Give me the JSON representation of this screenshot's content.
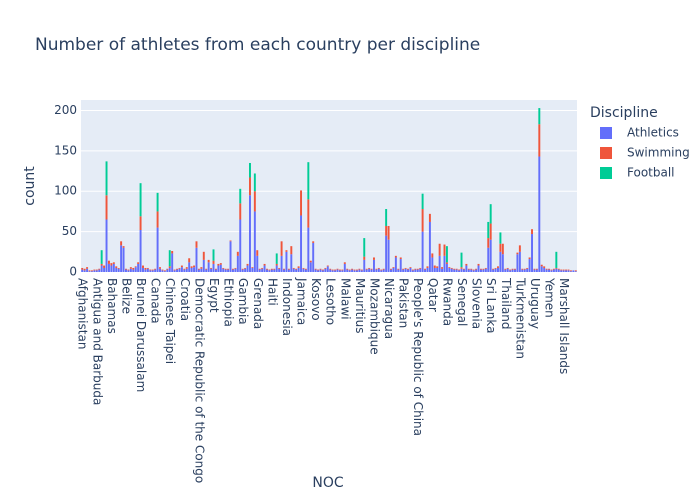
{
  "chart_data": {
    "type": "stacked-bar",
    "title": "Number of athletes from each country per discipline",
    "x_label": "NOC",
    "y_label": "count",
    "legend_title": "Discipline",
    "categories": [
      "Afghanistan",
      null,
      null,
      null,
      null,
      null,
      "Antigua and Barbuda",
      null,
      null,
      null,
      null,
      null,
      "Bahamas",
      null,
      null,
      null,
      null,
      null,
      "Belize",
      null,
      null,
      null,
      null,
      null,
      "Brunei Darussalam",
      null,
      null,
      null,
      null,
      null,
      "Canada",
      null,
      null,
      null,
      null,
      null,
      "Chinese Taipei",
      null,
      null,
      null,
      null,
      null,
      "Croatia",
      null,
      null,
      null,
      null,
      null,
      "Democratic Republic of the Congo",
      null,
      null,
      null,
      null,
      null,
      "Egypt",
      null,
      null,
      null,
      null,
      null,
      "Ethiopia",
      null,
      null,
      null,
      null,
      null,
      "Gambia",
      null,
      null,
      null,
      null,
      null,
      "Grenada",
      null,
      null,
      null,
      null,
      null,
      "Haiti",
      null,
      null,
      null,
      null,
      null,
      "Indonesia",
      null,
      null,
      null,
      null,
      null,
      "Jamaica",
      null,
      null,
      null,
      null,
      null,
      "Kosovo",
      null,
      null,
      null,
      null,
      null,
      "Lesotho",
      null,
      null,
      null,
      null,
      null,
      "Malawi",
      null,
      null,
      null,
      null,
      null,
      "Mauritius",
      null,
      null,
      null,
      null,
      null,
      "Mozambique",
      null,
      null,
      null,
      null,
      null,
      "Nicaragua",
      null,
      null,
      null,
      null,
      null,
      "Pakistan",
      null,
      null,
      null,
      null,
      null,
      "People's Republic of China",
      null,
      null,
      null,
      null,
      null,
      "Qatar",
      null,
      null,
      null,
      null,
      null,
      "Rwanda",
      null,
      null,
      null,
      null,
      null,
      "Senegal",
      null,
      null,
      null,
      null,
      null,
      "Slovenia",
      null,
      null,
      null,
      null,
      null,
      "Sri Lanka",
      null,
      null,
      null,
      null,
      null,
      "Thailand",
      null,
      null,
      null,
      null,
      null,
      "Turkmenistan",
      null,
      null,
      null,
      null,
      null,
      "Uruguay",
      null,
      null,
      null,
      null,
      null,
      "Yemen",
      null,
      null,
      null,
      null,
      null,
      "Marshall Islands",
      null,
      null,
      null,
      null,
      null
    ],
    "series": [
      {
        "name": "Athletics",
        "color": "#636efa",
        "values": [
          3,
          2,
          4,
          1,
          1,
          2,
          2,
          3,
          8,
          5,
          65,
          10,
          8,
          10,
          5,
          4,
          33,
          30,
          3,
          2,
          4,
          3,
          6,
          10,
          52,
          5,
          3,
          4,
          2,
          2,
          3,
          55,
          4,
          2,
          1,
          3,
          5,
          23,
          2,
          3,
          4,
          6,
          3,
          4,
          12,
          5,
          6,
          30,
          3,
          4,
          15,
          3,
          12,
          4,
          10,
          3,
          8,
          9,
          4,
          3,
          3,
          38,
          3,
          4,
          20,
          65,
          3,
          4,
          8,
          95,
          5,
          75,
          20,
          3,
          4,
          8,
          3,
          2,
          3,
          3,
          8,
          4,
          20,
          3,
          25,
          3,
          22,
          4,
          3,
          5,
          70,
          4,
          3,
          55,
          12,
          36,
          3,
          2,
          3,
          2,
          4,
          7,
          3,
          2,
          2,
          3,
          2,
          2,
          10,
          3,
          2,
          3,
          2,
          2,
          3,
          2,
          15,
          3,
          4,
          3,
          15,
          3,
          4,
          2,
          3,
          45,
          40,
          3,
          5,
          18,
          3,
          16,
          3,
          4,
          3,
          5,
          2,
          3,
          3,
          4,
          50,
          3,
          5,
          62,
          18,
          5,
          5,
          20,
          4,
          20,
          10,
          5,
          4,
          3,
          3,
          2,
          4,
          3,
          8,
          3,
          3,
          2,
          3,
          8,
          3,
          3,
          4,
          30,
          40,
          3,
          4,
          5,
          25,
          22,
          3,
          4,
          2,
          3,
          3,
          22,
          25,
          3,
          3,
          4,
          16,
          47,
          3,
          3,
          143,
          7,
          5,
          3,
          3,
          2,
          3,
          4,
          3,
          2,
          2,
          2,
          2,
          1,
          2,
          1
        ]
      },
      {
        "name": "Swimming",
        "color": "#EF553B",
        "values": [
          2,
          2,
          2,
          1,
          1,
          1,
          1,
          1,
          2,
          3,
          30,
          4,
          3,
          2,
          2,
          1,
          5,
          2,
          1,
          1,
          2,
          2,
          1,
          2,
          17,
          3,
          2,
          1,
          1,
          1,
          1,
          20,
          2,
          1,
          1,
          1,
          2,
          3,
          1,
          1,
          1,
          2,
          1,
          2,
          5,
          2,
          2,
          8,
          1,
          2,
          10,
          1,
          3,
          1,
          4,
          1,
          2,
          2,
          1,
          1,
          1,
          1,
          1,
          1,
          5,
          20,
          1,
          1,
          2,
          22,
          1,
          25,
          7,
          1,
          1,
          2,
          1,
          1,
          1,
          1,
          2,
          1,
          18,
          1,
          2,
          1,
          10,
          1,
          1,
          2,
          31,
          1,
          1,
          35,
          2,
          2,
          1,
          1,
          1,
          1,
          1,
          1,
          1,
          1,
          1,
          1,
          1,
          1,
          2,
          1,
          1,
          1,
          1,
          1,
          1,
          1,
          4,
          1,
          1,
          1,
          3,
          1,
          1,
          1,
          1,
          12,
          17,
          1,
          1,
          2,
          1,
          2,
          1,
          1,
          1,
          1,
          1,
          1,
          1,
          1,
          28,
          1,
          2,
          10,
          5,
          3,
          2,
          15,
          2,
          14,
          2,
          1,
          1,
          1,
          1,
          1,
          2,
          1,
          2,
          1,
          1,
          1,
          1,
          2,
          1,
          1,
          1,
          12,
          20,
          1,
          1,
          2,
          10,
          13,
          1,
          1,
          1,
          1,
          1,
          2,
          8,
          1,
          1,
          1,
          2,
          6,
          1,
          1,
          40,
          2,
          2,
          1,
          1,
          1,
          1,
          1,
          1,
          1,
          1,
          1,
          1,
          1,
          0,
          1
        ]
      },
      {
        "name": "Football",
        "color": "#00cc96",
        "values": [
          0,
          0,
          0,
          0,
          0,
          0,
          0,
          0,
          17,
          0,
          42,
          0,
          0,
          0,
          0,
          0,
          0,
          0,
          0,
          0,
          0,
          0,
          0,
          0,
          41,
          0,
          0,
          0,
          0,
          0,
          0,
          23,
          0,
          0,
          0,
          0,
          20,
          0,
          0,
          0,
          0,
          0,
          0,
          0,
          0,
          0,
          0,
          0,
          0,
          0,
          0,
          0,
          0,
          0,
          14,
          0,
          0,
          0,
          0,
          0,
          0,
          0,
          0,
          0,
          0,
          18,
          0,
          0,
          0,
          18,
          0,
          22,
          0,
          0,
          0,
          0,
          0,
          0,
          0,
          0,
          13,
          0,
          0,
          0,
          0,
          0,
          0,
          0,
          0,
          0,
          0,
          0,
          0,
          46,
          0,
          0,
          0,
          0,
          0,
          0,
          0,
          0,
          0,
          0,
          0,
          0,
          0,
          0,
          0,
          0,
          0,
          0,
          0,
          0,
          0,
          0,
          23,
          0,
          0,
          0,
          0,
          0,
          0,
          0,
          0,
          21,
          0,
          0,
          0,
          0,
          0,
          0,
          0,
          0,
          0,
          0,
          0,
          0,
          0,
          0,
          19,
          0,
          0,
          0,
          0,
          0,
          0,
          0,
          0,
          0,
          20,
          0,
          0,
          0,
          0,
          0,
          18,
          0,
          0,
          0,
          0,
          0,
          0,
          0,
          0,
          0,
          0,
          20,
          24,
          0,
          0,
          0,
          14,
          0,
          0,
          0,
          0,
          0,
          0,
          0,
          0,
          0,
          0,
          0,
          0,
          0,
          0,
          0,
          20,
          0,
          0,
          0,
          0,
          0,
          0,
          20,
          0,
          0,
          0,
          0,
          0,
          0,
          0,
          0
        ]
      }
    ],
    "ylim": [
      0,
      213
    ],
    "yticks": [
      0,
      50,
      100,
      150,
      200
    ],
    "grid": true
  }
}
